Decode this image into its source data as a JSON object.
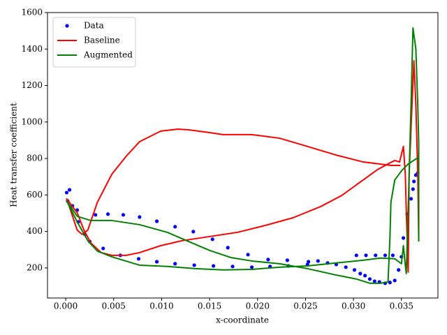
{
  "chart_data": {
    "type": "line",
    "x_label": "x-coordinate",
    "y_label": "Heat transfer coefficient",
    "xlim": [
      -0.0019,
      0.0388
    ],
    "ylim": [
      35,
      1600
    ],
    "xticks": [
      {
        "value": 0,
        "label": "0.000"
      },
      {
        "value": 0.005,
        "label": "0.005"
      },
      {
        "value": 0.01,
        "label": "0.010"
      },
      {
        "value": 0.015,
        "label": "0.015"
      },
      {
        "value": 0.02,
        "label": "0.020"
      },
      {
        "value": 0.025,
        "label": "0.025"
      },
      {
        "value": 0.03,
        "label": "0.030"
      },
      {
        "value": 0.035,
        "label": "0.035"
      }
    ],
    "yticks": [
      200,
      400,
      600,
      800,
      1000,
      1200,
      1400,
      1600
    ],
    "grid": false,
    "legend": "upper left",
    "series": [
      {
        "name": "Data",
        "color": "#0000ff",
        "mode": "markers",
        "x": [
          0.0001,
          0.0004,
          0.0002,
          0.0007,
          0.0012,
          0.0013,
          0.002,
          0.0025,
          0.0031,
          0.0039,
          0.0044,
          0.0057,
          0.006,
          0.0076,
          0.0077,
          0.0095,
          0.0095,
          0.0114,
          0.0114,
          0.0134,
          0.0133,
          0.0154,
          0.0153,
          0.0174,
          0.0169,
          0.0194,
          0.019,
          0.0213,
          0.0211,
          0.0232,
          0.0231,
          0.0252,
          0.0253,
          0.0263,
          0.0273,
          0.0282,
          0.0292,
          0.0301,
          0.0307,
          0.0312,
          0.0317,
          0.0322,
          0.0327,
          0.0333,
          0.0338,
          0.0343,
          0.0347,
          0.035,
          0.0352,
          0.0356,
          0.036,
          0.0362,
          0.0363,
          0.0365,
          0.0367,
          0.0303,
          0.0313,
          0.0323,
          0.0333,
          0.0341
        ],
        "values": [
          613,
          628,
          567,
          540,
          517,
          452,
          384,
          345,
          491,
          307,
          495,
          269,
          491,
          250,
          479,
          234,
          456,
          223,
          426,
          215,
          399,
          211,
          357,
          208,
          311,
          204,
          273,
          208,
          246,
          211,
          242,
          219,
          234,
          238,
          227,
          219,
          204,
          189,
          169,
          158,
          139,
          127,
          123,
          116,
          120,
          131,
          189,
          261,
          364,
          495,
          579,
          632,
          674,
          709,
          720,
          269,
          269,
          269,
          269,
          269
        ]
      },
      {
        "name": "Baseline",
        "color": "#ff0000",
        "mode": "line",
        "x": [
          0.0349,
          0.0339,
          0.031,
          0.0281,
          0.0252,
          0.0223,
          0.0194,
          0.0164,
          0.015,
          0.0128,
          0.0117,
          0.0099,
          0.0077,
          0.0063,
          0.0048,
          0.0033,
          0.0023,
          0.0017,
          0.0012,
          0.0001,
          0.0012,
          0.0019,
          0.0026,
          0.0037,
          0.0048,
          0.0063,
          0.0077,
          0.0099,
          0.0121,
          0.015,
          0.0179,
          0.0208,
          0.0237,
          0.0266,
          0.0288,
          0.031,
          0.0325,
          0.0336,
          0.0343,
          0.0348,
          0.0352,
          0.0354,
          0.0355,
          0.0357,
          0.0358,
          0.0361,
          0.0363,
          0.0365,
          0.0367,
          0.0368
        ],
        "values": [
          762,
          762,
          781,
          820,
          866,
          911,
          931,
          931,
          942,
          957,
          961,
          950,
          892,
          812,
          713,
          560,
          407,
          384,
          407,
          579,
          502,
          407,
          338,
          284,
          269,
          269,
          284,
          322,
          349,
          372,
          395,
          433,
          475,
          537,
          598,
          682,
          739,
          770,
          789,
          781,
          866,
          713,
          521,
          177,
          713,
          1095,
          1336,
          1095,
          713,
          345
        ]
      },
      {
        "name": "Augmented",
        "color": "#008000",
        "mode": "line",
        "x": [
          0.0368,
          0.0365,
          0.0357,
          0.035,
          0.0343,
          0.0339,
          0.0338,
          0.0336,
          0.0328,
          0.0317,
          0.0303,
          0.0281,
          0.0252,
          0.0223,
          0.0194,
          0.0172,
          0.015,
          0.0128,
          0.0106,
          0.0077,
          0.0048,
          0.0026,
          0.0012,
          0.0001,
          0.0012,
          0.0023,
          0.0033,
          0.0048,
          0.0077,
          0.0106,
          0.0135,
          0.0164,
          0.0194,
          0.0223,
          0.0252,
          0.0281,
          0.031,
          0.0328,
          0.0343,
          0.035,
          0.0352,
          0.0354,
          0.0355,
          0.0357,
          0.036,
          0.0362,
          0.0365,
          0.0367,
          0.0368,
          0.0368
        ],
        "values": [
          808,
          797,
          770,
          732,
          682,
          560,
          368,
          123,
          116,
          116,
          139,
          162,
          196,
          223,
          238,
          257,
          296,
          345,
          395,
          437,
          460,
          460,
          483,
          567,
          452,
          349,
          292,
          261,
          215,
          208,
          196,
          189,
          192,
          204,
          211,
          227,
          242,
          254,
          250,
          223,
          322,
          215,
          169,
          521,
          1095,
          1516,
          1401,
          1095,
          885,
          345
        ]
      }
    ]
  }
}
